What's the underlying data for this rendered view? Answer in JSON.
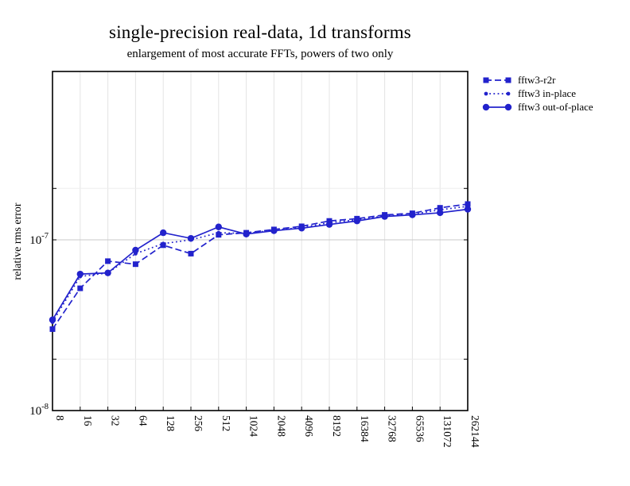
{
  "page": {
    "background": "#ffffff",
    "accent_color": "#2222cc",
    "grid_major_color": "#c9c9c9",
    "grid_minor_color": "#ededed",
    "frame_color": "#000000"
  },
  "chart_data": {
    "type": "line",
    "title": "single-precision real-data, 1d transforms",
    "subtitle": "enlargement of most accurate FFTs, powers of two only",
    "xlabel": "",
    "ylabel": "relative rms error",
    "x_scale": "log2",
    "y_scale": "log10",
    "categories": [
      8,
      16,
      32,
      64,
      128,
      256,
      512,
      1024,
      2048,
      4096,
      8192,
      16384,
      32768,
      65536,
      131072,
      262144
    ],
    "x_tick_labels": [
      "8",
      "16",
      "32",
      "64",
      "128",
      "256",
      "512",
      "1024",
      "2048",
      "4096",
      "8192",
      "16384",
      "32768",
      "65536",
      "131072",
      "262144"
    ],
    "y_ticks": [
      {
        "base": "10",
        "exp": "-8",
        "value": 1e-08
      },
      {
        "base": "10",
        "exp": "-7",
        "value": 1e-07
      }
    ],
    "y_minor_ticks": [
      2e-08,
      2e-07
    ],
    "ylim": [
      1e-08,
      9.7e-07
    ],
    "grid": true,
    "legend_position": "top-right-outside",
    "series": [
      {
        "name": "fftw3-r2r",
        "marker": "square",
        "line_style": "dashed",
        "color": "#2222cc",
        "values": [
          3e-08,
          5.2e-08,
          7.5e-08,
          7.2e-08,
          9.3e-08,
          8.3e-08,
          1.07e-07,
          1.1e-07,
          1.15e-07,
          1.2e-07,
          1.29e-07,
          1.33e-07,
          1.4e-07,
          1.43e-07,
          1.54e-07,
          1.62e-07
        ]
      },
      {
        "name": "fftw3 in-place",
        "marker": "dot",
        "line_style": "dotted",
        "color": "#2222cc",
        "values": [
          3.3e-08,
          6.1e-08,
          6.4e-08,
          8.3e-08,
          9.5e-08,
          1e-07,
          1.1e-07,
          1.09e-07,
          1.14e-07,
          1.18e-07,
          1.26e-07,
          1.31e-07,
          1.38e-07,
          1.41e-07,
          1.5e-07,
          1.57e-07
        ]
      },
      {
        "name": "fftw3 out-of-place",
        "marker": "circle",
        "line_style": "solid",
        "color": "#2222cc",
        "values": [
          3.4e-08,
          6.3e-08,
          6.4e-08,
          8.7e-08,
          1.1e-07,
          1.02e-07,
          1.19e-07,
          1.08e-07,
          1.13e-07,
          1.17e-07,
          1.23e-07,
          1.29e-07,
          1.37e-07,
          1.4e-07,
          1.44e-07,
          1.51e-07
        ]
      }
    ]
  }
}
